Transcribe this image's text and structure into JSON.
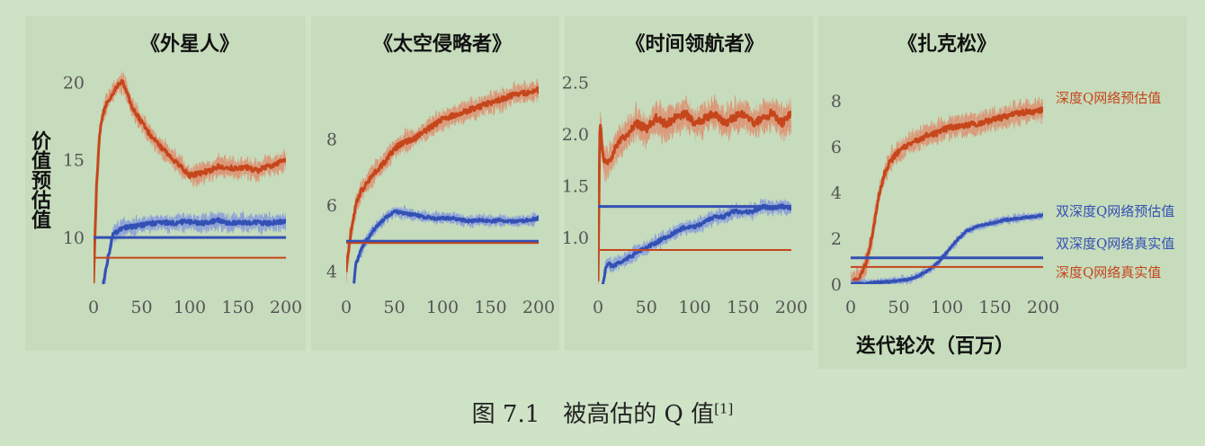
{
  "ylabel": "价值预估值",
  "xlabel": "迭代轮次（百万）",
  "caption": {
    "text": "图 7.1　被高估的 Q 值",
    "ref": "[1]"
  },
  "colors": {
    "red": "#c6461c",
    "red_band": "#dc9575",
    "blue": "#3350b4",
    "blue_band": "#8a9fd9",
    "axis_text": "#555555",
    "background": "#cfe3c7"
  },
  "legend": [
    {
      "label": "深度Q网络预估值",
      "color": "#c6461c"
    },
    {
      "label": "双深度Q网络预估值",
      "color": "#3350b4"
    },
    {
      "label": "双深度Q网络真实值",
      "color": "#3350b4"
    },
    {
      "label": "深度Q网络真实值",
      "color": "#c6461c"
    }
  ],
  "chart_data": [
    {
      "type": "line",
      "title": "《外星人》",
      "xlim": [
        0,
        200
      ],
      "ylim": [
        7,
        21
      ],
      "xticks": [
        "0",
        "50",
        "100",
        "150",
        "200"
      ],
      "yticks": [
        {
          "v": 10,
          "label": "10"
        },
        {
          "v": 15,
          "label": "15"
        },
        {
          "v": 20,
          "label": "20"
        }
      ],
      "series": [
        {
          "name": "深度Q网络预估值",
          "x": [
            0,
            3,
            6,
            10,
            15,
            20,
            25,
            30,
            35,
            40,
            50,
            60,
            70,
            80,
            90,
            100,
            110,
            120,
            130,
            140,
            150,
            160,
            170,
            180,
            190,
            200
          ],
          "y": [
            7.0,
            13.0,
            16.5,
            18.0,
            18.8,
            19.3,
            19.8,
            20.0,
            19.3,
            18.4,
            17.4,
            16.5,
            15.8,
            15.2,
            14.6,
            14.0,
            14.1,
            14.3,
            14.6,
            14.5,
            14.4,
            14.5,
            14.3,
            14.6,
            14.7,
            15.0
          ],
          "noise": 0.9
        },
        {
          "name": "双深度Q网络预估值",
          "x": [
            10,
            12,
            15,
            18,
            20,
            25,
            30,
            40,
            50,
            60,
            70,
            80,
            90,
            100,
            110,
            120,
            130,
            140,
            150,
            160,
            170,
            180,
            190,
            200
          ],
          "y": [
            7.0,
            7.6,
            8.6,
            9.6,
            10.2,
            10.4,
            10.6,
            10.7,
            10.8,
            10.9,
            11.0,
            10.9,
            11.0,
            11.0,
            10.9,
            11.0,
            11.1,
            10.9,
            11.0,
            10.9,
            11.0,
            10.9,
            11.0,
            11.0
          ],
          "noise": 0.8
        },
        {
          "name": "双深度Q网络真实值",
          "x": [
            0,
            200
          ],
          "y": [
            10.0,
            10.0
          ]
        },
        {
          "name": "深度Q网络真实值",
          "x": [
            0,
            200
          ],
          "y": [
            8.7,
            8.7
          ]
        }
      ]
    },
    {
      "type": "line",
      "title": "《太空侵略者》",
      "xlim": [
        0,
        200
      ],
      "ylim": [
        3.6,
        10.2
      ],
      "xticks": [
        "0",
        "50",
        "100",
        "150",
        "200"
      ],
      "yticks": [
        {
          "v": 4,
          "label": "4"
        },
        {
          "v": 6,
          "label": "6"
        },
        {
          "v": 8,
          "label": "8"
        }
      ],
      "series": [
        {
          "name": "深度Q网络预估值",
          "x": [
            0,
            5,
            10,
            15,
            20,
            30,
            40,
            50,
            60,
            70,
            80,
            90,
            100,
            110,
            120,
            130,
            140,
            150,
            160,
            170,
            180,
            190,
            200
          ],
          "y": [
            4.0,
            5.2,
            6.0,
            6.4,
            6.6,
            7.0,
            7.3,
            7.7,
            7.9,
            8.0,
            8.2,
            8.4,
            8.6,
            8.7,
            8.8,
            8.9,
            9.0,
            9.1,
            9.2,
            9.3,
            9.4,
            9.4,
            9.5
          ],
          "noise": 0.45
        },
        {
          "name": "双深度Q网络预估值",
          "x": [
            8,
            10,
            15,
            20,
            30,
            40,
            50,
            60,
            70,
            80,
            90,
            100,
            110,
            120,
            130,
            140,
            150,
            160,
            170,
            180,
            190,
            200
          ],
          "y": [
            3.6,
            4.2,
            4.6,
            4.9,
            5.3,
            5.6,
            5.8,
            5.75,
            5.7,
            5.65,
            5.6,
            5.6,
            5.6,
            5.55,
            5.5,
            5.55,
            5.5,
            5.55,
            5.5,
            5.5,
            5.55,
            5.6
          ],
          "noise": 0.25
        },
        {
          "name": "双深度Q网络真实值",
          "x": [
            0,
            200
          ],
          "y": [
            4.9,
            4.9
          ]
        },
        {
          "name": "深度Q网络真实值",
          "x": [
            0,
            200
          ],
          "y": [
            4.85,
            4.85
          ]
        }
      ]
    },
    {
      "type": "line",
      "title": "《时间领航者》",
      "xlim": [
        0,
        200
      ],
      "ylim": [
        0.55,
        2.65
      ],
      "xticks": [
        "0",
        "50",
        "100",
        "150",
        "200"
      ],
      "yticks": [
        {
          "v": 1.0,
          "label": "1.0"
        },
        {
          "v": 1.5,
          "label": "1.5"
        },
        {
          "v": 2.0,
          "label": "2.0"
        },
        {
          "v": 2.5,
          "label": "2.5"
        }
      ],
      "series": [
        {
          "name": "深度Q网络预估值",
          "x": [
            0,
            2,
            4,
            6,
            10,
            15,
            20,
            30,
            40,
            50,
            60,
            70,
            80,
            90,
            100,
            110,
            120,
            130,
            140,
            150,
            160,
            170,
            180,
            190,
            200
          ],
          "y": [
            0.55,
            2.15,
            1.9,
            1.75,
            1.7,
            1.8,
            1.9,
            2.0,
            2.1,
            2.05,
            2.15,
            2.1,
            2.15,
            2.2,
            2.1,
            2.15,
            2.2,
            2.1,
            2.15,
            2.2,
            2.1,
            2.15,
            2.2,
            2.1,
            2.2
          ],
          "noise": 0.22
        },
        {
          "name": "双深度Q网络预估值",
          "x": [
            5,
            8,
            10,
            15,
            20,
            30,
            40,
            50,
            60,
            70,
            80,
            90,
            100,
            110,
            120,
            130,
            140,
            150,
            160,
            170,
            180,
            190,
            200
          ],
          "y": [
            0.55,
            0.7,
            0.75,
            0.72,
            0.75,
            0.8,
            0.85,
            0.9,
            0.95,
            1.0,
            1.05,
            1.1,
            1.1,
            1.15,
            1.2,
            1.2,
            1.25,
            1.25,
            1.25,
            1.3,
            1.28,
            1.3,
            1.28
          ],
          "noise": 0.1
        },
        {
          "name": "双深度Q网络真实值",
          "x": [
            0,
            200
          ],
          "y": [
            1.3,
            1.3
          ]
        },
        {
          "name": "深度Q网络真实值",
          "x": [
            0,
            200
          ],
          "y": [
            0.88,
            0.88
          ]
        }
      ]
    },
    {
      "type": "line",
      "title": "《扎克松》",
      "xlim": [
        0,
        200
      ],
      "ylim": [
        0,
        9.5
      ],
      "xticks": [
        "0",
        "50",
        "100",
        "150",
        "200"
      ],
      "yticks": [
        {
          "v": 0,
          "label": "0"
        },
        {
          "v": 2,
          "label": "2"
        },
        {
          "v": 4,
          "label": "4"
        },
        {
          "v": 6,
          "label": "6"
        },
        {
          "v": 8,
          "label": "8"
        }
      ],
      "series": [
        {
          "name": "深度Q网络预估值",
          "x": [
            0,
            10,
            15,
            20,
            25,
            30,
            35,
            40,
            50,
            60,
            70,
            80,
            90,
            100,
            110,
            120,
            130,
            140,
            150,
            160,
            170,
            180,
            190,
            200
          ],
          "y": [
            0.0,
            0.3,
            0.8,
            1.6,
            2.8,
            4.0,
            4.8,
            5.3,
            5.8,
            6.1,
            6.3,
            6.5,
            6.6,
            6.8,
            6.9,
            6.95,
            7.0,
            7.1,
            7.2,
            7.3,
            7.4,
            7.5,
            7.55,
            7.6
          ],
          "noise": 0.7
        },
        {
          "name": "双深度Q网络预估值",
          "x": [
            0,
            20,
            40,
            60,
            70,
            80,
            90,
            100,
            110,
            120,
            130,
            140,
            150,
            160,
            170,
            180,
            190,
            200
          ],
          "y": [
            0.0,
            0.05,
            0.1,
            0.2,
            0.35,
            0.6,
            0.9,
            1.4,
            1.9,
            2.3,
            2.5,
            2.6,
            2.7,
            2.8,
            2.85,
            2.9,
            2.95,
            3.0
          ],
          "noise": 0.25
        },
        {
          "name": "双深度Q网络真实值",
          "x": [
            0,
            200
          ],
          "y": [
            1.15,
            1.15
          ]
        },
        {
          "name": "深度Q网络真实值",
          "x": [
            0,
            200
          ],
          "y": [
            0.75,
            0.75
          ]
        }
      ]
    }
  ]
}
